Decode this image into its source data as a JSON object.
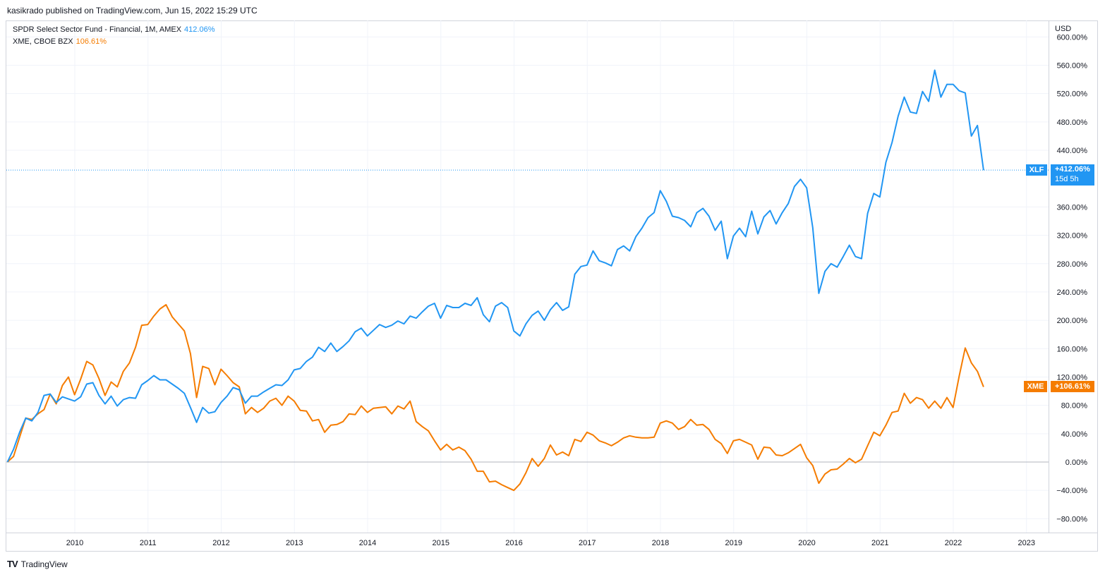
{
  "header": {
    "published_by": "kasikrado published on TradingView.com, Jun 15, 2022 15:29 UTC"
  },
  "legend": {
    "xlf": {
      "label": "SPDR Select Sector Fund - Financial, 1M, AMEX",
      "value": "412.06%"
    },
    "xme": {
      "label": "XME, CBOE BZX",
      "value": "106.61%"
    }
  },
  "axis": {
    "currency": "USD"
  },
  "price_tags": {
    "xlf": {
      "symbol": "XLF",
      "value": "+412.06%",
      "countdown": "15d 5h"
    },
    "xme": {
      "symbol": "XME",
      "value": "+106.61%"
    }
  },
  "footer": {
    "brand": "TradingView",
    "logo": "TV"
  },
  "colors": {
    "xlf": "#2196f3",
    "xme": "#f57c00",
    "grid": "#f0f3fa",
    "zero_line": "#b2b5be"
  },
  "chart_data": {
    "type": "line",
    "x_tick_labels": [
      "2010",
      "2011",
      "2012",
      "2013",
      "2014",
      "2015",
      "2016",
      "2017",
      "2018",
      "2019",
      "2020",
      "2021",
      "2022",
      "2023"
    ],
    "y_tick_labels": [
      "600.00%",
      "560.00%",
      "520.00%",
      "480.00%",
      "440.00%",
      "360.00%",
      "320.00%",
      "280.00%",
      "240.00%",
      "200.00%",
      "160.00%",
      "120.00%",
      "80.00%",
      "40.00%",
      "0.00%",
      "−40.00%",
      "−80.00%"
    ],
    "y_ticks": [
      600,
      560,
      520,
      480,
      440,
      360,
      320,
      280,
      240,
      200,
      160,
      120,
      80,
      40,
      0,
      -40,
      -80
    ],
    "ylim": [
      -100,
      610
    ],
    "xlim": [
      2009.07,
      2023.3
    ],
    "x_start": 2009.08,
    "x_step": 0.0833333,
    "grid": true,
    "series": [
      {
        "name": "XLF",
        "values": [
          0,
          18,
          42,
          62,
          58,
          70,
          94,
          96,
          84,
          92,
          89,
          86,
          92,
          110,
          112,
          94,
          82,
          93,
          79,
          88,
          91,
          90,
          109,
          115,
          122,
          116,
          116,
          110,
          104,
          97,
          77,
          56,
          77,
          69,
          71,
          84,
          93,
          105,
          102,
          83,
          93,
          93,
          99,
          104,
          109,
          108,
          116,
          130,
          132,
          142,
          148,
          162,
          156,
          168,
          156,
          163,
          171,
          184,
          189,
          178,
          186,
          194,
          190,
          193,
          199,
          195,
          206,
          203,
          212,
          220,
          224,
          203,
          221,
          218,
          218,
          224,
          221,
          232,
          208,
          198,
          220,
          225,
          218,
          185,
          178,
          195,
          207,
          213,
          200,
          215,
          225,
          214,
          219,
          265,
          276,
          278,
          298,
          284,
          281,
          277,
          300,
          305,
          298,
          318,
          330,
          345,
          352,
          383,
          368,
          347,
          345,
          341,
          332,
          352,
          358,
          347,
          327,
          340,
          287,
          319,
          330,
          318,
          354,
          322,
          346,
          355,
          336,
          352,
          365,
          389,
          399,
          387,
          331,
          238,
          269,
          280,
          275,
          290,
          306,
          290,
          287,
          351,
          379,
          374,
          423,
          451,
          488,
          515,
          494,
          492,
          523,
          509,
          553,
          515,
          533,
          533,
          524,
          521,
          460,
          475,
          412
        ]
      },
      {
        "name": "XME",
        "values": [
          0,
          8,
          35,
          62,
          60,
          68,
          74,
          96,
          82,
          108,
          120,
          95,
          117,
          142,
          137,
          118,
          94,
          113,
          106,
          128,
          140,
          162,
          193,
          194,
          206,
          216,
          222,
          205,
          195,
          185,
          153,
          91,
          135,
          132,
          109,
          131,
          122,
          112,
          106,
          68,
          77,
          70,
          76,
          86,
          90,
          80,
          93,
          86,
          73,
          72,
          58,
          60,
          42,
          52,
          53,
          57,
          68,
          67,
          79,
          70,
          76,
          77,
          78,
          68,
          79,
          75,
          86,
          57,
          50,
          44,
          30,
          17,
          25,
          17,
          21,
          16,
          4,
          -13,
          -13,
          -28,
          -27,
          -32,
          -36,
          -40,
          -31,
          -15,
          5,
          -6,
          5,
          24,
          10,
          14,
          9,
          32,
          29,
          42,
          38,
          30,
          27,
          23,
          28,
          34,
          37,
          35,
          34,
          34,
          35,
          55,
          58,
          55,
          46,
          50,
          60,
          52,
          53,
          46,
          32,
          26,
          12,
          30,
          32,
          28,
          24,
          4,
          21,
          20,
          10,
          9,
          13,
          19,
          25,
          6,
          -5,
          -30,
          -17,
          -11,
          -10,
          -3,
          5,
          -1,
          4,
          23,
          42,
          37,
          52,
          70,
          72,
          97,
          83,
          91,
          88,
          76,
          86,
          76,
          91,
          77,
          121,
          161,
          140,
          128,
          106
        ]
      }
    ]
  }
}
